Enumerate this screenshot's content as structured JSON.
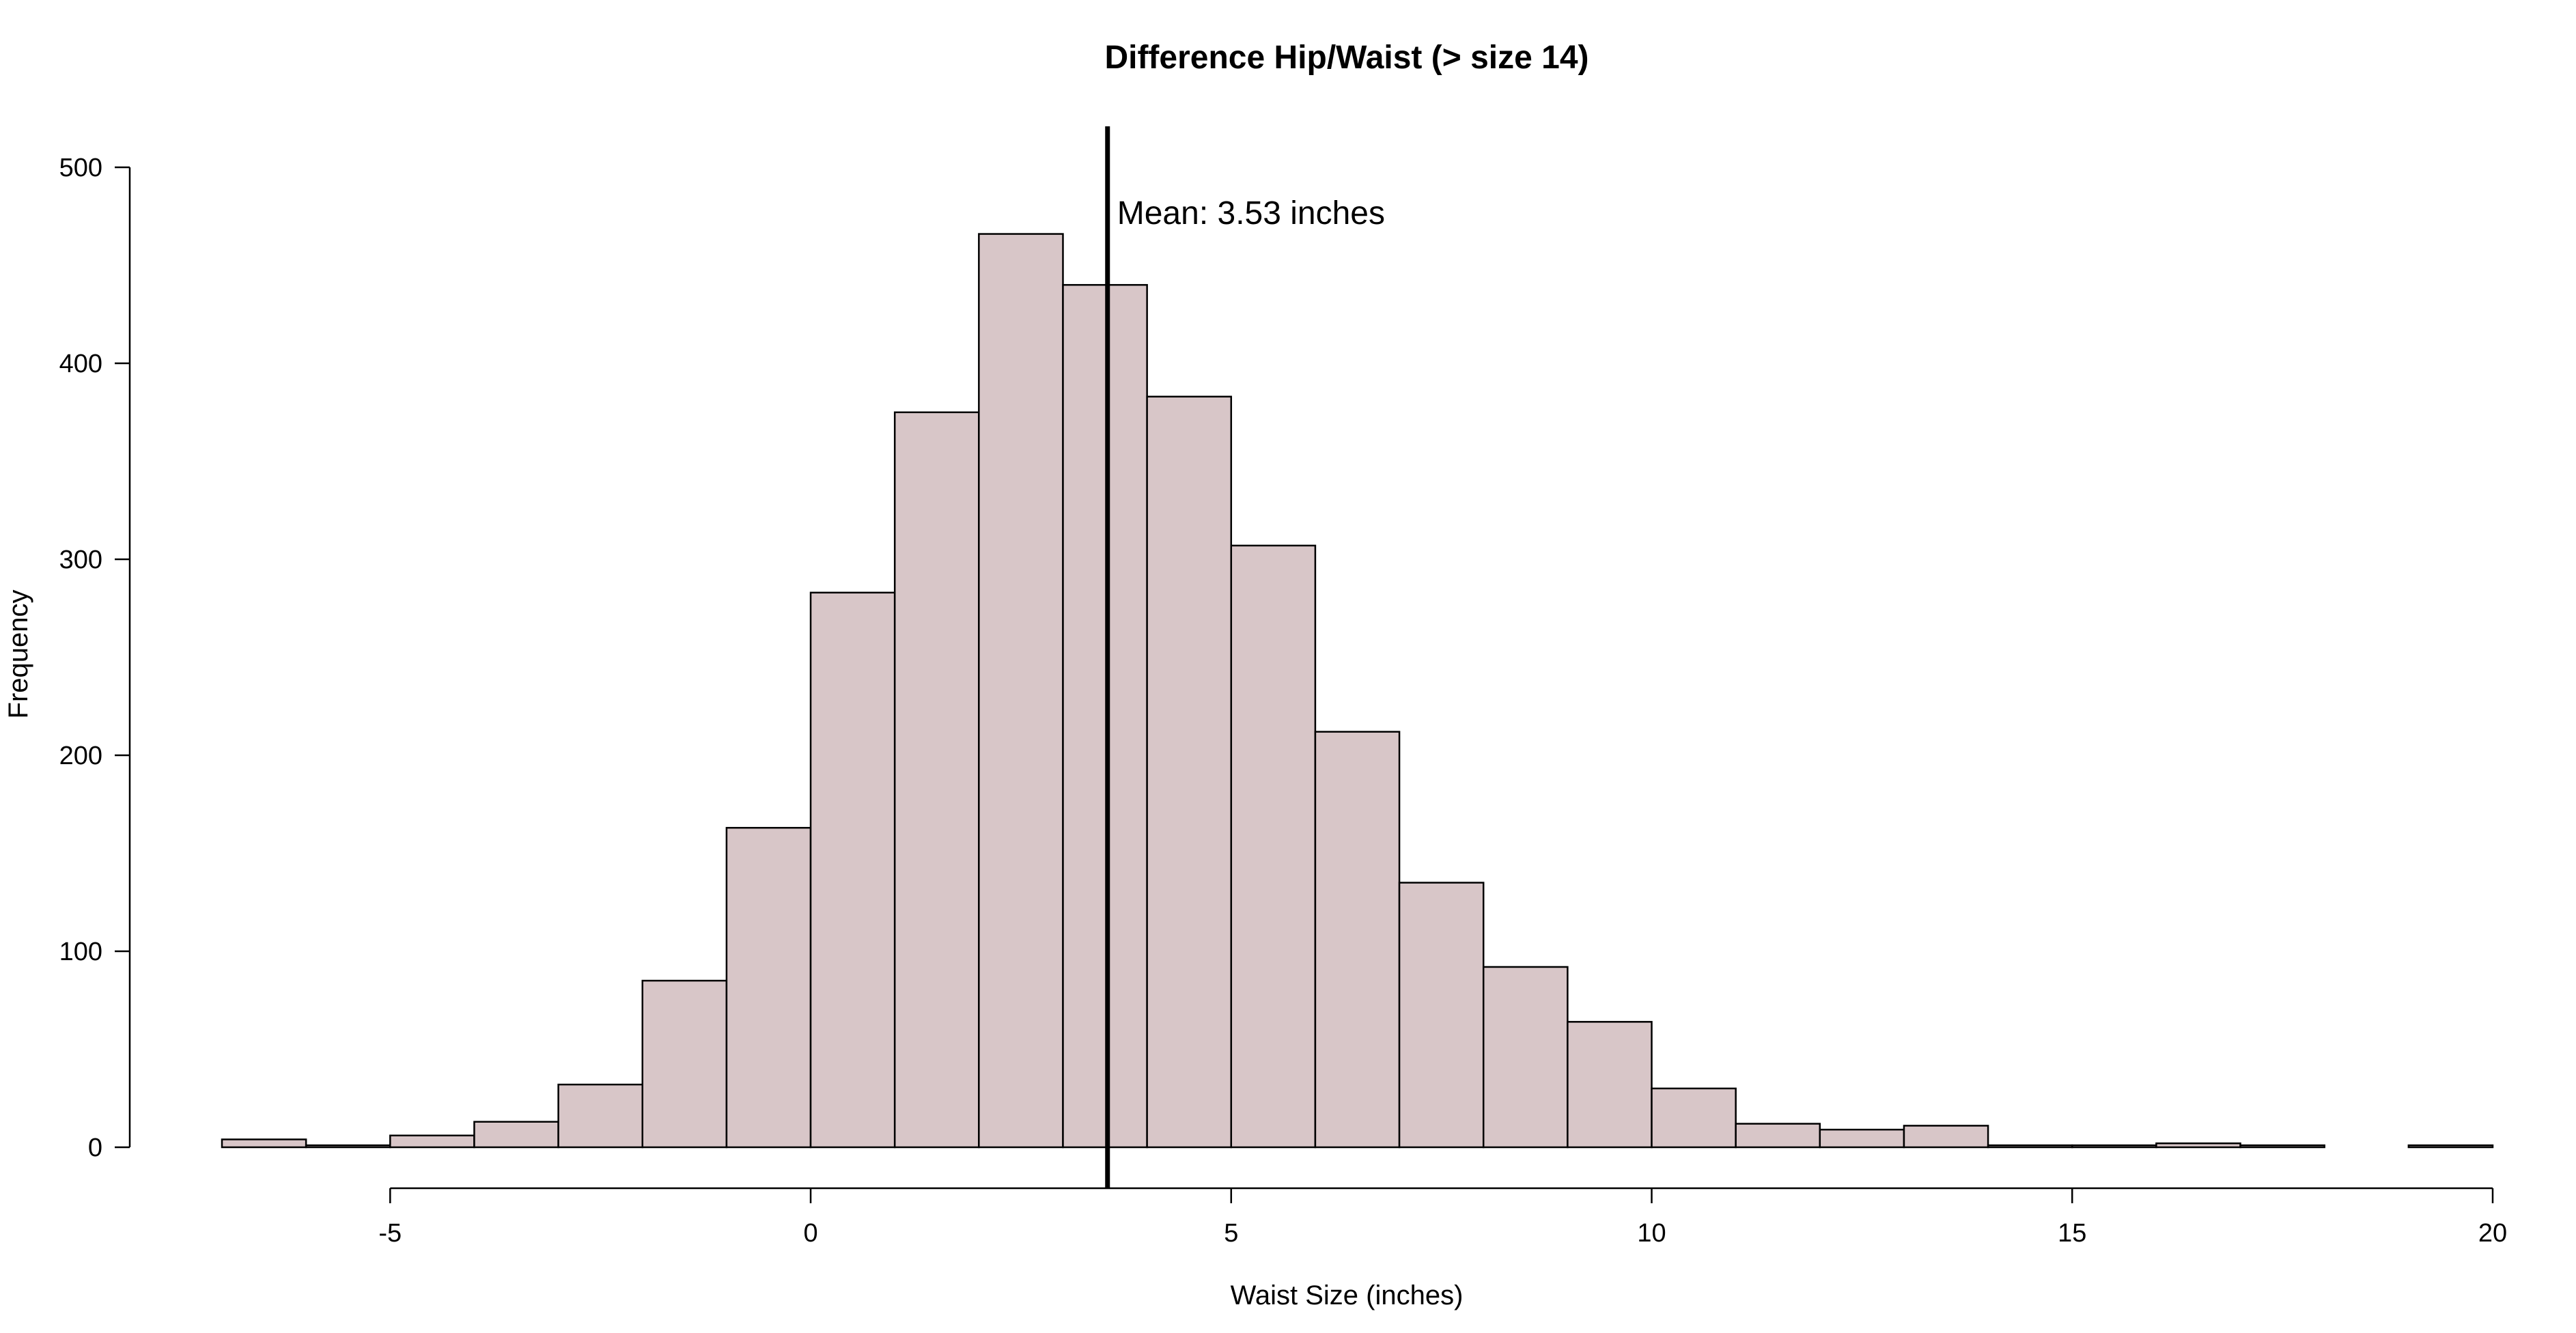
{
  "chart_data": {
    "type": "bar",
    "subtype": "histogram",
    "title": "Difference Hip/Waist (> size 14)",
    "xlabel": "Waist Size (inches)",
    "ylabel": "Frequency",
    "bin_width": 1,
    "bin_starts": [
      -7,
      -6,
      -5,
      -4,
      -3,
      -2,
      -1,
      0,
      1,
      2,
      3,
      4,
      5,
      6,
      7,
      8,
      9,
      10,
      11,
      12,
      13,
      14,
      15,
      16,
      17,
      18,
      19
    ],
    "values": [
      4,
      1,
      6,
      13,
      32,
      85,
      163,
      283,
      375,
      466,
      440,
      383,
      307,
      212,
      135,
      92,
      64,
      30,
      12,
      9,
      11,
      1,
      1,
      2,
      1,
      0,
      1
    ],
    "xlim": [
      -7,
      20
    ],
    "ylim": [
      0,
      500
    ],
    "x_ticks": [
      -5,
      0,
      5,
      10,
      15,
      20
    ],
    "y_ticks": [
      0,
      100,
      200,
      300,
      400,
      500
    ],
    "x_tick_labels": [
      "-5",
      "0",
      "5",
      "10",
      "15",
      "20"
    ],
    "y_tick_labels": [
      "0",
      "100",
      "200",
      "300",
      "400",
      "500"
    ],
    "bar_color": "#d8c6c8",
    "grid": false,
    "annotations": [
      {
        "type": "vline",
        "x": 3.53,
        "text": "Mean:  3.53 inches"
      }
    ]
  }
}
